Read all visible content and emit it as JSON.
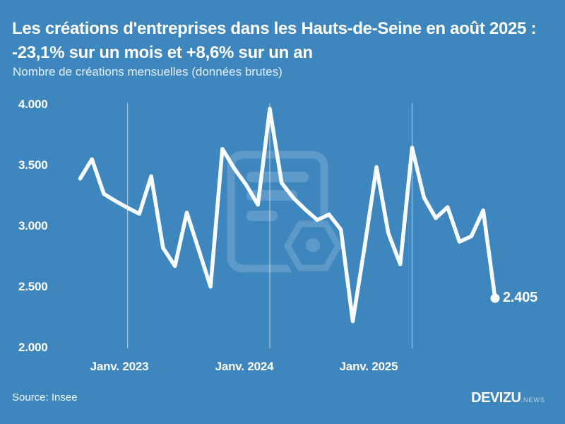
{
  "title": "Les créations d'entreprises dans les Hauts-de-Seine en août 2025 : -23,1% sur un mois et +8,6% sur un an",
  "subtitle": "Nombre de créations mensuelles (données brutes)",
  "source": "Source: Insee",
  "logo": {
    "name": "DEVIZU",
    "suffix": ".NEWS"
  },
  "colors": {
    "background": "#3d86be",
    "line": "#f9fcff",
    "text": "#ffffff",
    "gridline": "rgba(255,255,255,0.55)",
    "watermark": "rgba(255,255,255,0.17)"
  },
  "chart_data": {
    "type": "line",
    "title": "Les créations d'entreprises dans les Hauts-de-Seine en août 2025 : -23,1% sur un mois et +8,6% sur un an",
    "ylabel": "Nombre de créations mensuelles (données brutes)",
    "ylim": [
      2000,
      4000
    ],
    "grid": "vertical-only-at-january",
    "legend": "none",
    "x": [
      "Sept. 2022",
      "Oct. 2022",
      "Nov. 2022",
      "Déc. 2022",
      "Janv. 2023",
      "Févr. 2023",
      "Mars 2023",
      "Avr. 2023",
      "Mai 2023",
      "Juin 2023",
      "Juil. 2023",
      "Août 2023",
      "Sept. 2023",
      "Oct. 2023",
      "Nov. 2023",
      "Déc. 2023",
      "Janv. 2024",
      "Févr. 2024",
      "Mars 2024",
      "Avr. 2024",
      "Mai 2024",
      "Juin 2024",
      "Juil. 2024",
      "Août 2024",
      "Sept. 2024",
      "Oct. 2024",
      "Nov. 2024",
      "Déc. 2024",
      "Janv. 2025",
      "Févr. 2025",
      "Mars 2025",
      "Avr. 2025",
      "Mai 2025",
      "Juin 2025",
      "Juil. 2025",
      "Août 2025"
    ],
    "values": [
      3390,
      3550,
      3265,
      3205,
      3150,
      3100,
      3410,
      2820,
      2670,
      3110,
      2805,
      2500,
      3635,
      3475,
      3340,
      3175,
      3965,
      3355,
      3230,
      3135,
      3050,
      3095,
      2970,
      2215,
      2830,
      3485,
      2940,
      2685,
      3645,
      3235,
      3065,
      3155,
      2870,
      2915,
      3128,
      2405
    ],
    "y_ticks": [
      {
        "label": "4.000",
        "value": 4000
      },
      {
        "label": "3.500",
        "value": 3500
      },
      {
        "label": "3.000",
        "value": 3000
      },
      {
        "label": "2.500",
        "value": 2500
      },
      {
        "label": "2.000",
        "value": 2000
      }
    ],
    "x_ticks": [
      {
        "label": "Janv. 2023",
        "i": 4,
        "cx": 169
      },
      {
        "label": "Janv. 2024",
        "i": 16,
        "cx": 346
      },
      {
        "label": "Janv. 2025",
        "i": 28,
        "cx": 522
      }
    ],
    "end_label": "2.405",
    "end_value": 2405
  }
}
